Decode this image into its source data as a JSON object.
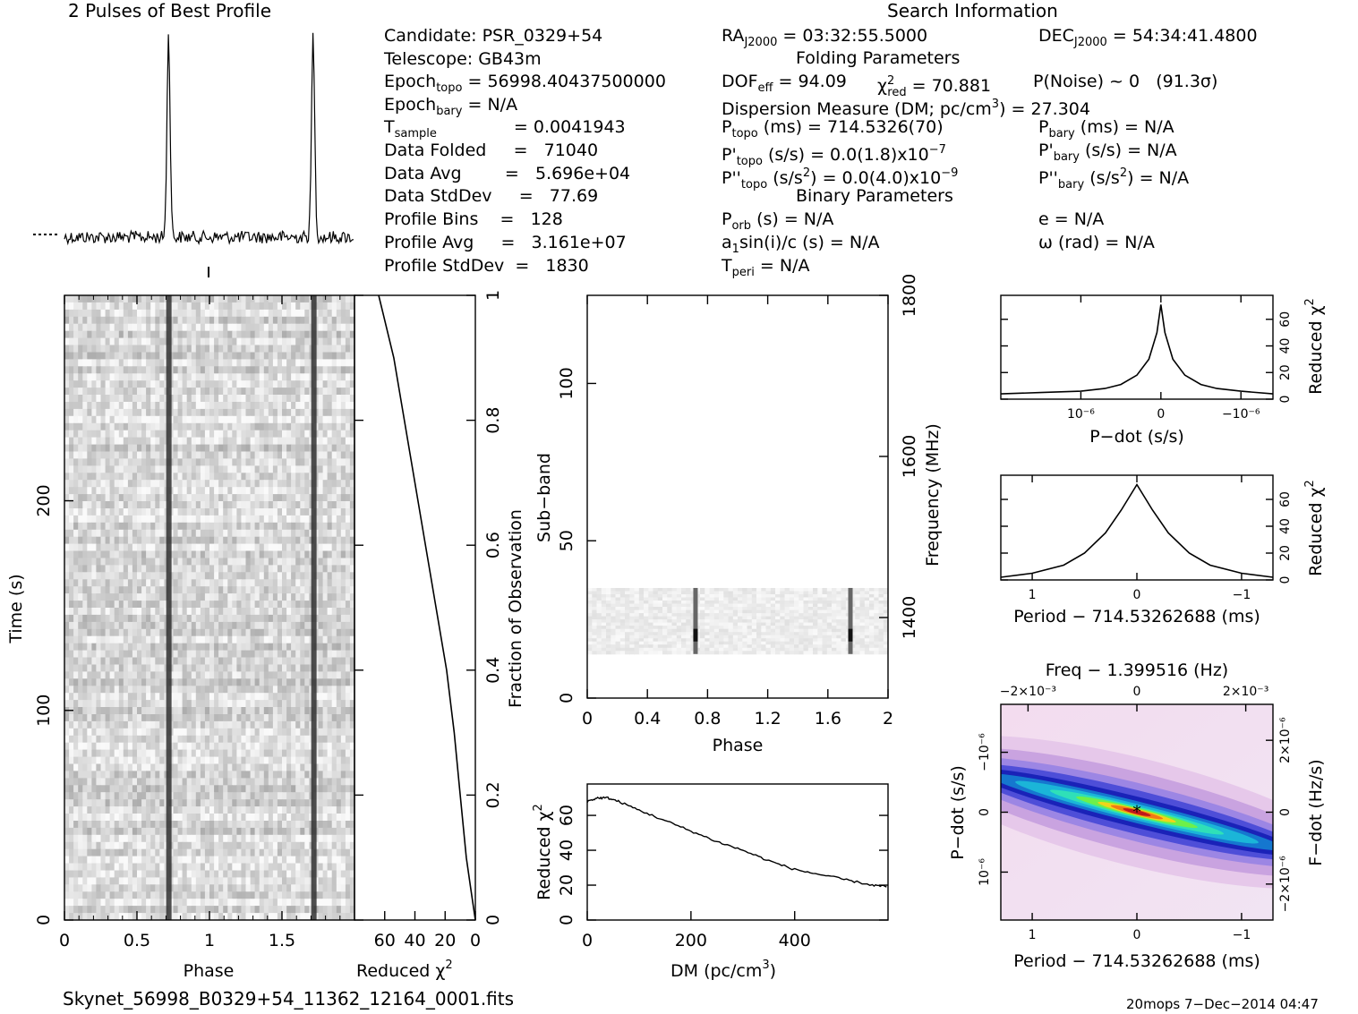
{
  "title_profile": "2 Pulses of Best Profile",
  "title_search": "Search Information",
  "candidate_info": {
    "candidate": "Candidate:  PSR_0329+54",
    "telescope": "Telescope:  GB43m",
    "epoch_topo": "= 56998.40437500000",
    "epoch_bary": "= N/A",
    "t_sample": "=   0.0041943",
    "data_folded": "Data Folded     =   71040",
    "data_avg": "Data Avg        =   5.696e+04",
    "data_stddev": "Data StdDev     =   77.69",
    "profile_bins": "Profile Bins    =   128",
    "profile_avg": "Profile Avg     =   3.161e+07",
    "profile_stddev": "Profile StdDev  =   1830"
  },
  "search_info": {
    "ra": "= 03:32:55.5000",
    "dec": "= 54:34:41.4800",
    "folding_header": "Folding Parameters",
    "dof": "= 94.09",
    "chi2": "= 70.881",
    "pnoise": "P(Noise) ~ 0   (91.3σ)",
    "dm": "Dispersion Measure (DM; pc/cm",
    "dm_value": ") = 27.304",
    "p_topo": "(ms) =  714.5326(70)",
    "p_bary": "(ms) = N/A",
    "pd_topo": "(s/s) = 0.0(1.8)x10",
    "pd_topo_exp": "−7",
    "pd_bary": "(s/s) = N/A",
    "pdd_topo": "(s/s",
    "pdd_topo_val": ") = 0.0(4.0)x10",
    "pdd_topo_exp": "−9",
    "pdd_bary": "(s/s",
    "pdd_bary_val": ") = N/A",
    "binary_header": "Binary Parameters",
    "porb": "(s) = N/A",
    "a1": "sin(i)/c (s) = N/A",
    "tperi": "= N/A",
    "e": "e = N/A",
    "omega": "ω (rad) = N/A"
  },
  "footer": {
    "filename": "Skynet_56998_B0329+54_11362_12164_0001.fits",
    "stamp": "20mops  7−Dec−2014 04:47"
  },
  "labels": {
    "phase": "Phase",
    "time": "Time (s)",
    "reduced_chi2": "Reduced χ",
    "fraction": "Fraction of Observation",
    "subband": "Sub−band",
    "frequency": "Frequency (MHz)",
    "dm_axis": "DM (pc/cm",
    "pdot": "P−dot (s/s)",
    "period": "Period − 714.53262688 (ms)",
    "freq_title": "Freq − 1.399516 (Hz)",
    "fdot": "F−dot (Hz/s)"
  },
  "chart_data": [
    {
      "type": "line",
      "name": "profile",
      "title": "2 Pulses of Best Profile",
      "x_range": [
        0,
        2
      ],
      "peaks_phase": [
        0.72,
        1.72
      ],
      "note_values": "two identical pulse peaks over baseline noise"
    },
    {
      "type": "heatmap",
      "name": "time-phase",
      "xlabel": "Phase",
      "ylabel": "Time (s)",
      "x_ticks": [
        "0",
        "0.5",
        "1",
        "1.5"
      ],
      "x_tick_values": [
        0,
        0.5,
        1,
        1.5
      ],
      "xlim": [
        0,
        2
      ],
      "y_ticks": [
        "0",
        "100",
        "200"
      ],
      "y_tick_values": [
        0,
        100,
        200
      ],
      "ylim": [
        0,
        298
      ],
      "pulse_phase": [
        0.72,
        1.72
      ]
    },
    {
      "type": "line",
      "name": "chi2-vs-fraction",
      "xlabel": "Reduced χ²",
      "ylabel": "Fraction of Observation",
      "x_ticks": [
        "60",
        "40",
        "20",
        "0"
      ],
      "x_tick_values": [
        60,
        40,
        20,
        0
      ],
      "xlim": [
        80,
        0
      ],
      "y_ticks": [
        "0",
        "0.2",
        "0.4",
        "0.6",
        "0.8",
        "1"
      ],
      "y_tick_values": [
        0,
        0.2,
        0.4,
        0.6,
        0.8,
        1
      ],
      "ylim": [
        0,
        1
      ],
      "points": [
        [
          0,
          0
        ],
        [
          3,
          0.05
        ],
        [
          6,
          0.1
        ],
        [
          10,
          0.2
        ],
        [
          14,
          0.3
        ],
        [
          19,
          0.4
        ],
        [
          26,
          0.5
        ],
        [
          33,
          0.6
        ],
        [
          40,
          0.7
        ],
        [
          47,
          0.8
        ],
        [
          54,
          0.9
        ],
        [
          61,
          0.97
        ],
        [
          64,
          1.0
        ]
      ]
    },
    {
      "type": "heatmap",
      "name": "subband-phase",
      "xlabel": "Phase",
      "ylabel": "Sub−band",
      "x_ticks": [
        "0",
        "0.4",
        "0.8",
        "1.2",
        "1.6",
        "2"
      ],
      "x_tick_values": [
        0,
        0.4,
        0.8,
        1.2,
        1.6,
        2
      ],
      "xlim": [
        0,
        2
      ],
      "y_ticks": [
        "0",
        "50",
        "100"
      ],
      "y_tick_values": [
        0,
        50,
        100
      ],
      "ylim": [
        0,
        128
      ],
      "freq_ticks": [
        "1400",
        "1600",
        "1800"
      ],
      "freq_tick_values": [
        1400,
        1600,
        1800
      ],
      "data_band": [
        14,
        35
      ],
      "pulse_phase": [
        0.72,
        1.75
      ]
    },
    {
      "type": "line",
      "name": "dm-chi2",
      "xlabel": "DM (pc/cm³)",
      "ylabel": "Reduced χ²",
      "x_ticks": [
        "0",
        "200",
        "400"
      ],
      "x_tick_values": [
        0,
        200,
        400
      ],
      "xlim": [
        0,
        580
      ],
      "y_ticks": [
        "0",
        "20",
        "40",
        "60"
      ],
      "y_tick_values": [
        0,
        20,
        40,
        60
      ],
      "ylim": [
        0,
        78
      ],
      "points": [
        [
          0,
          68
        ],
        [
          20,
          70
        ],
        [
          40,
          70
        ],
        [
          60,
          68
        ],
        [
          100,
          63
        ],
        [
          150,
          57
        ],
        [
          200,
          51
        ],
        [
          250,
          45
        ],
        [
          300,
          40
        ],
        [
          350,
          34
        ],
        [
          400,
          29
        ],
        [
          450,
          26
        ],
        [
          500,
          23
        ],
        [
          550,
          20
        ],
        [
          580,
          19
        ]
      ]
    },
    {
      "type": "line",
      "name": "pdot-chi2",
      "xlabel": "P−dot (s/s)",
      "ylabel": "Reduced χ²",
      "x_ticks": [
        "10⁻⁶",
        "0",
        "−10⁻⁶"
      ],
      "x_tick_values": [
        1,
        0,
        -1
      ],
      "xlim": [
        2,
        -1.4
      ],
      "y_ticks": [
        "0",
        "20",
        "40",
        "60"
      ],
      "y_tick_values": [
        0,
        20,
        40,
        60
      ],
      "ylim": [
        0,
        78
      ],
      "points": [
        [
          2,
          4
        ],
        [
          1.5,
          5
        ],
        [
          1.0,
          6
        ],
        [
          0.7,
          8
        ],
        [
          0.5,
          11
        ],
        [
          0.3,
          18
        ],
        [
          0.15,
          30
        ],
        [
          0.05,
          50
        ],
        [
          0,
          71
        ],
        [
          -0.05,
          50
        ],
        [
          -0.15,
          30
        ],
        [
          -0.3,
          18
        ],
        [
          -0.5,
          11
        ],
        [
          -0.7,
          8
        ],
        [
          -1.0,
          6
        ],
        [
          -1.4,
          4
        ]
      ]
    },
    {
      "type": "line",
      "name": "period-chi2",
      "xlabel": "Period − 714.53262688 (ms)",
      "ylabel": "Reduced χ²",
      "x_ticks": [
        "1",
        "0",
        "−1"
      ],
      "x_tick_values": [
        1,
        0,
        -1
      ],
      "xlim": [
        1.3,
        -1.3
      ],
      "y_ticks": [
        "0",
        "20",
        "40",
        "60"
      ],
      "y_tick_values": [
        0,
        20,
        40,
        60
      ],
      "ylim": [
        0,
        78
      ],
      "points": [
        [
          1.3,
          2
        ],
        [
          1.0,
          5
        ],
        [
          0.7,
          11
        ],
        [
          0.5,
          20
        ],
        [
          0.3,
          35
        ],
        [
          0.15,
          52
        ],
        [
          0,
          71
        ],
        [
          -0.15,
          52
        ],
        [
          -0.3,
          35
        ],
        [
          -0.5,
          20
        ],
        [
          -0.7,
          11
        ],
        [
          -1.0,
          5
        ],
        [
          -1.3,
          2
        ]
      ]
    },
    {
      "type": "heatmap",
      "name": "period-pdot",
      "title": "Freq − 1.399516 (Hz)",
      "xlabel": "Period − 714.53262688 (ms)",
      "ylabel": "P−dot (s/s)",
      "x_ticks": [
        "1",
        "0",
        "−1"
      ],
      "x_tick_values": [
        1,
        0,
        -1
      ],
      "xlim": [
        1.3,
        -1.3
      ],
      "top_ticks": [
        "−2×10⁻³",
        "0",
        "2×10⁻³"
      ],
      "top_tick_values": [
        -0.002,
        0,
        0.002
      ],
      "y_ticks": [
        "10⁻⁶",
        "0",
        "−10⁻⁶"
      ],
      "y_tick_values": [
        1,
        0,
        -1
      ],
      "ylim": [
        1.8,
        -1.8
      ],
      "right_ticks": [
        "−2×10⁻⁶",
        "0",
        "2×10⁻⁶"
      ],
      "right_tick_values": [
        -2,
        0,
        2
      ],
      "best_point": [
        0,
        0
      ]
    }
  ]
}
